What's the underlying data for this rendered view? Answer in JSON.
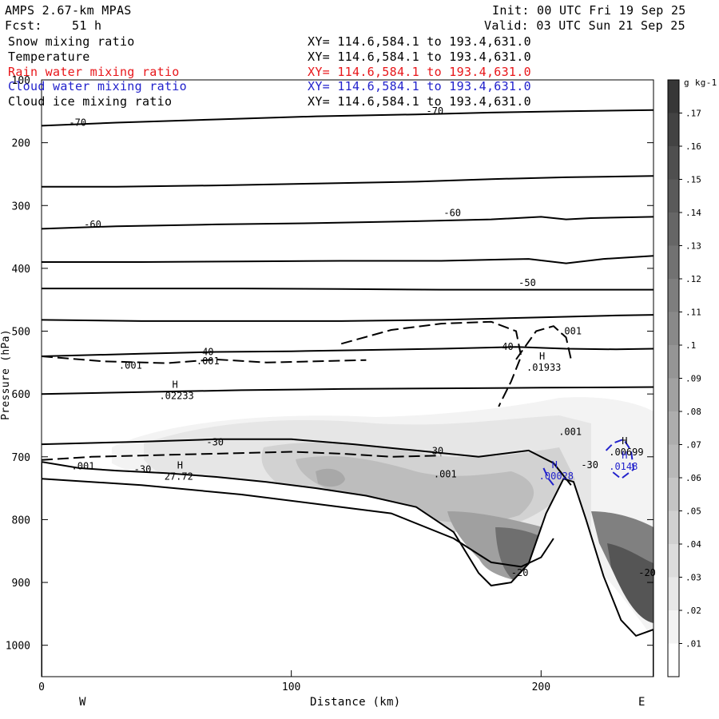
{
  "header": {
    "model": "AMPS 2.67-km MPAS",
    "fcst_label": "Fcst:",
    "fcst_hours": "51 h",
    "init": "Init: 00 UTC Fri 19 Sep 25",
    "valid": "Valid: 03 UTC Sun 21 Sep 25"
  },
  "fields": [
    {
      "name": "Snow mixing ratio",
      "xy": "XY= 114.6,584.1 to 193.4,631.0",
      "color": "#000000"
    },
    {
      "name": "Temperature",
      "xy": "XY= 114.6,584.1 to 193.4,631.0",
      "color": "#000000"
    },
    {
      "name": "Rain water mixing ratio",
      "xy": "XY= 114.6,584.1 to 193.4,631.0",
      "color": "#e8161a"
    },
    {
      "name": "Cloud water mixing ratio",
      "xy": "XY= 114.6,584.1 to 193.4,631.0",
      "color": "#2222cc"
    },
    {
      "name": "Cloud ice mixing ratio",
      "xy": "XY= 114.6,584.1 to 193.4,631.0",
      "color": "#000000"
    }
  ],
  "chart_data": {
    "type": "heatmap",
    "xlabel": "Distance (km)",
    "ylabel": "Pressure (hPa)",
    "xlim": [
      0,
      245
    ],
    "ylim": [
      1050,
      100
    ],
    "x_ticks": [
      0,
      100,
      200
    ],
    "y_ticks": [
      100,
      200,
      300,
      400,
      500,
      600,
      700,
      800,
      900,
      1000
    ],
    "x_tick_labels": [
      "0",
      "100",
      "200"
    ],
    "y_tick_labels": [
      "100",
      "200",
      "300",
      "400",
      "500",
      "600",
      "700",
      "800",
      "900",
      "1000"
    ],
    "left_label": "W",
    "right_label": "E",
    "colorbar": {
      "units": "g kg-1",
      "levels": [
        0.01,
        0.02,
        0.03,
        0.04,
        0.05,
        0.06,
        0.07,
        0.08,
        0.09,
        0.1,
        0.11,
        0.12,
        0.13,
        0.14,
        0.15,
        0.16,
        0.17
      ],
      "level_labels": [
        ".01",
        ".02",
        ".03",
        ".04",
        ".05",
        ".06",
        ".07",
        ".08",
        ".09",
        ".1",
        ".11",
        ".12",
        ".13",
        ".14",
        ".15",
        ".16",
        ".17"
      ]
    },
    "terrain": [
      [
        0,
        708
      ],
      [
        15,
        718
      ],
      [
        30,
        722
      ],
      [
        50,
        726
      ],
      [
        70,
        732
      ],
      [
        90,
        740
      ],
      [
        110,
        750
      ],
      [
        130,
        762
      ],
      [
        150,
        780
      ],
      [
        165,
        820
      ],
      [
        175,
        885
      ],
      [
        180,
        905
      ],
      [
        188,
        900
      ],
      [
        195,
        870
      ],
      [
        202,
        790
      ],
      [
        209,
        735
      ],
      [
        213,
        740
      ],
      [
        218,
        800
      ],
      [
        225,
        890
      ],
      [
        232,
        960
      ],
      [
        238,
        985
      ],
      [
        245,
        975
      ]
    ],
    "temperature_contours": [
      {
        "value": -70,
        "label": "-70",
        "points": [
          [
            0,
            173
          ],
          [
            30,
            168
          ],
          [
            70,
            163
          ],
          [
            110,
            158
          ],
          [
            150,
            155
          ],
          [
            180,
            152
          ],
          [
            210,
            150
          ],
          [
            245,
            148
          ]
        ]
      },
      {
        "value": null,
        "label": "",
        "points": [
          [
            0,
            270
          ],
          [
            30,
            270
          ],
          [
            70,
            268
          ],
          [
            110,
            265
          ],
          [
            150,
            262
          ],
          [
            180,
            258
          ],
          [
            210,
            255
          ],
          [
            245,
            253
          ]
        ]
      },
      {
        "value": -60,
        "label": "-60",
        "points": [
          [
            0,
            337
          ],
          [
            30,
            333
          ],
          [
            70,
            330
          ],
          [
            110,
            328
          ],
          [
            150,
            325
          ],
          [
            180,
            322
          ],
          [
            200,
            318
          ],
          [
            210,
            322
          ],
          [
            220,
            320
          ],
          [
            245,
            318
          ]
        ]
      },
      {
        "value": null,
        "label": "",
        "points": [
          [
            0,
            390
          ],
          [
            40,
            390
          ],
          [
            80,
            389
          ],
          [
            120,
            388
          ],
          [
            160,
            388
          ],
          [
            195,
            385
          ],
          [
            210,
            392
          ],
          [
            225,
            385
          ],
          [
            245,
            380
          ]
        ]
      },
      {
        "value": -50,
        "label": "-50",
        "points": [
          [
            0,
            432
          ],
          [
            40,
            432
          ],
          [
            80,
            432
          ],
          [
            120,
            433
          ],
          [
            160,
            434
          ],
          [
            200,
            434
          ],
          [
            230,
            434
          ],
          [
            245,
            434
          ]
        ]
      },
      {
        "value": null,
        "label": "",
        "points": [
          [
            0,
            482
          ],
          [
            40,
            484
          ],
          [
            80,
            484
          ],
          [
            120,
            484
          ],
          [
            160,
            482
          ],
          [
            200,
            478
          ],
          [
            230,
            475
          ],
          [
            245,
            474
          ]
        ]
      },
      {
        "value": -40,
        "label": "-40",
        "points": [
          [
            0,
            540
          ],
          [
            40,
            536
          ],
          [
            70,
            533
          ],
          [
            100,
            532
          ],
          [
            130,
            530
          ],
          [
            160,
            528
          ],
          [
            190,
            525
          ],
          [
            210,
            528
          ],
          [
            230,
            529
          ],
          [
            245,
            528
          ]
        ]
      },
      {
        "value": null,
        "label": "",
        "points": [
          [
            0,
            600
          ],
          [
            40,
            597
          ],
          [
            80,
            594
          ],
          [
            120,
            592
          ],
          [
            160,
            591
          ],
          [
            200,
            590
          ],
          [
            245,
            589
          ]
        ]
      },
      {
        "value": -30,
        "label": "-30",
        "points": [
          [
            0,
            680
          ],
          [
            40,
            676
          ],
          [
            70,
            672
          ],
          [
            100,
            672
          ],
          [
            125,
            680
          ],
          [
            150,
            690
          ],
          [
            175,
            700
          ],
          [
            195,
            690
          ],
          [
            205,
            710
          ],
          [
            212,
            745
          ]
        ]
      },
      {
        "value": -20,
        "label": "-20",
        "points": [
          [
            0,
            735
          ],
          [
            40,
            745
          ],
          [
            80,
            760
          ],
          [
            110,
            775
          ],
          [
            140,
            790
          ],
          [
            165,
            830
          ],
          [
            180,
            868
          ],
          [
            192,
            875
          ],
          [
            200,
            860
          ],
          [
            205,
            830
          ]
        ]
      }
    ],
    "cloud_ice_contours": [
      {
        "label": ".001",
        "points": [
          [
            0,
            705
          ],
          [
            20,
            700
          ],
          [
            40,
            698
          ],
          [
            60,
            696
          ],
          [
            80,
            694
          ],
          [
            100,
            692
          ],
          [
            120,
            695
          ],
          [
            140,
            700
          ],
          [
            160,
            698
          ]
        ]
      },
      {
        "label": ".001",
        "points": [
          [
            120,
            520
          ],
          [
            140,
            498
          ],
          [
            160,
            488
          ],
          [
            180,
            485
          ],
          [
            190,
            500
          ],
          [
            192,
            540
          ],
          [
            188,
            580
          ],
          [
            183,
            620
          ]
        ]
      },
      {
        "label": ".001",
        "points": [
          [
            190,
            545
          ],
          [
            198,
            500
          ],
          [
            205,
            492
          ],
          [
            210,
            510
          ],
          [
            212,
            545
          ]
        ]
      },
      {
        "label": ".001",
        "points": [
          [
            0,
            540
          ],
          [
            25,
            548
          ],
          [
            50,
            551
          ],
          [
            70,
            545
          ],
          [
            90,
            550
          ],
          [
            110,
            548
          ],
          [
            130,
            546
          ]
        ]
      }
    ],
    "cloud_water_contours": [
      {
        "label": ".00028",
        "points": [
          [
            201,
            718
          ],
          [
            203,
            735
          ],
          [
            205,
            745
          ]
        ]
      },
      {
        "label": ".0148",
        "points": [
          [
            226,
            690
          ],
          [
            229,
            678
          ],
          [
            233,
            672
          ],
          [
            236,
            690
          ],
          [
            237,
            720
          ],
          [
            232,
            735
          ],
          [
            228,
            722
          ]
        ]
      }
    ],
    "maxima": [
      {
        "symbol": "H",
        "value": ".02233",
        "x": 51,
        "p": 590
      },
      {
        "symbol": "H",
        "value": "27.72",
        "x": 53,
        "p": 719
      },
      {
        "symbol": "H",
        "value": ".01933",
        "x": 198,
        "p": 545
      },
      {
        "symbol": "H",
        "value": ".00028",
        "x": 203,
        "p": 718
      },
      {
        "symbol": "H",
        "value": ".00699",
        "x": 231,
        "p": 680
      },
      {
        "symbol": "H",
        "value": ".0148",
        "x": 231,
        "p": 703
      }
    ],
    "contour_labels": [
      {
        "text": ".001",
        "x": 12,
        "p": 720,
        "color": "#000000"
      },
      {
        "text": "-30",
        "x": 37,
        "p": 725,
        "color": "#000000"
      },
      {
        "text": ".001",
        "x": 31,
        "p": 560,
        "color": "#000000"
      },
      {
        "text": ".001",
        "x": 62,
        "p": 553,
        "color": "#000000"
      },
      {
        "text": "-30",
        "x": 66,
        "p": 682,
        "color": "#000000"
      },
      {
        "text": "-40",
        "x": 62,
        "p": 538,
        "color": "#000000"
      },
      {
        "text": ".001",
        "x": 157,
        "p": 733,
        "color": "#000000"
      },
      {
        "text": "-30",
        "x": 154,
        "p": 696,
        "color": "#000000"
      },
      {
        "text": "-40",
        "x": 182,
        "p": 530,
        "color": "#000000"
      },
      {
        "text": "-50",
        "x": 191,
        "p": 428,
        "color": "#000000"
      },
      {
        "text": "-60",
        "x": 161,
        "p": 317,
        "color": "#000000"
      },
      {
        "text": "-60",
        "x": 17,
        "p": 335,
        "color": "#000000"
      },
      {
        "text": "-70",
        "x": 11,
        "p": 173,
        "color": "#000000"
      },
      {
        "text": "-70",
        "x": 154,
        "p": 155,
        "color": "#000000"
      },
      {
        "text": ".001",
        "x": 207,
        "p": 505,
        "color": "#000000"
      },
      {
        "text": ".001",
        "x": 207,
        "p": 665,
        "color": "#000000"
      },
      {
        "text": "-30",
        "x": 216,
        "p": 718,
        "color": "#000000"
      },
      {
        "text": "-20",
        "x": 188,
        "p": 890,
        "color": "#000000"
      },
      {
        "text": "-20",
        "x": 239,
        "p": 890,
        "color": "#000000"
      }
    ]
  }
}
